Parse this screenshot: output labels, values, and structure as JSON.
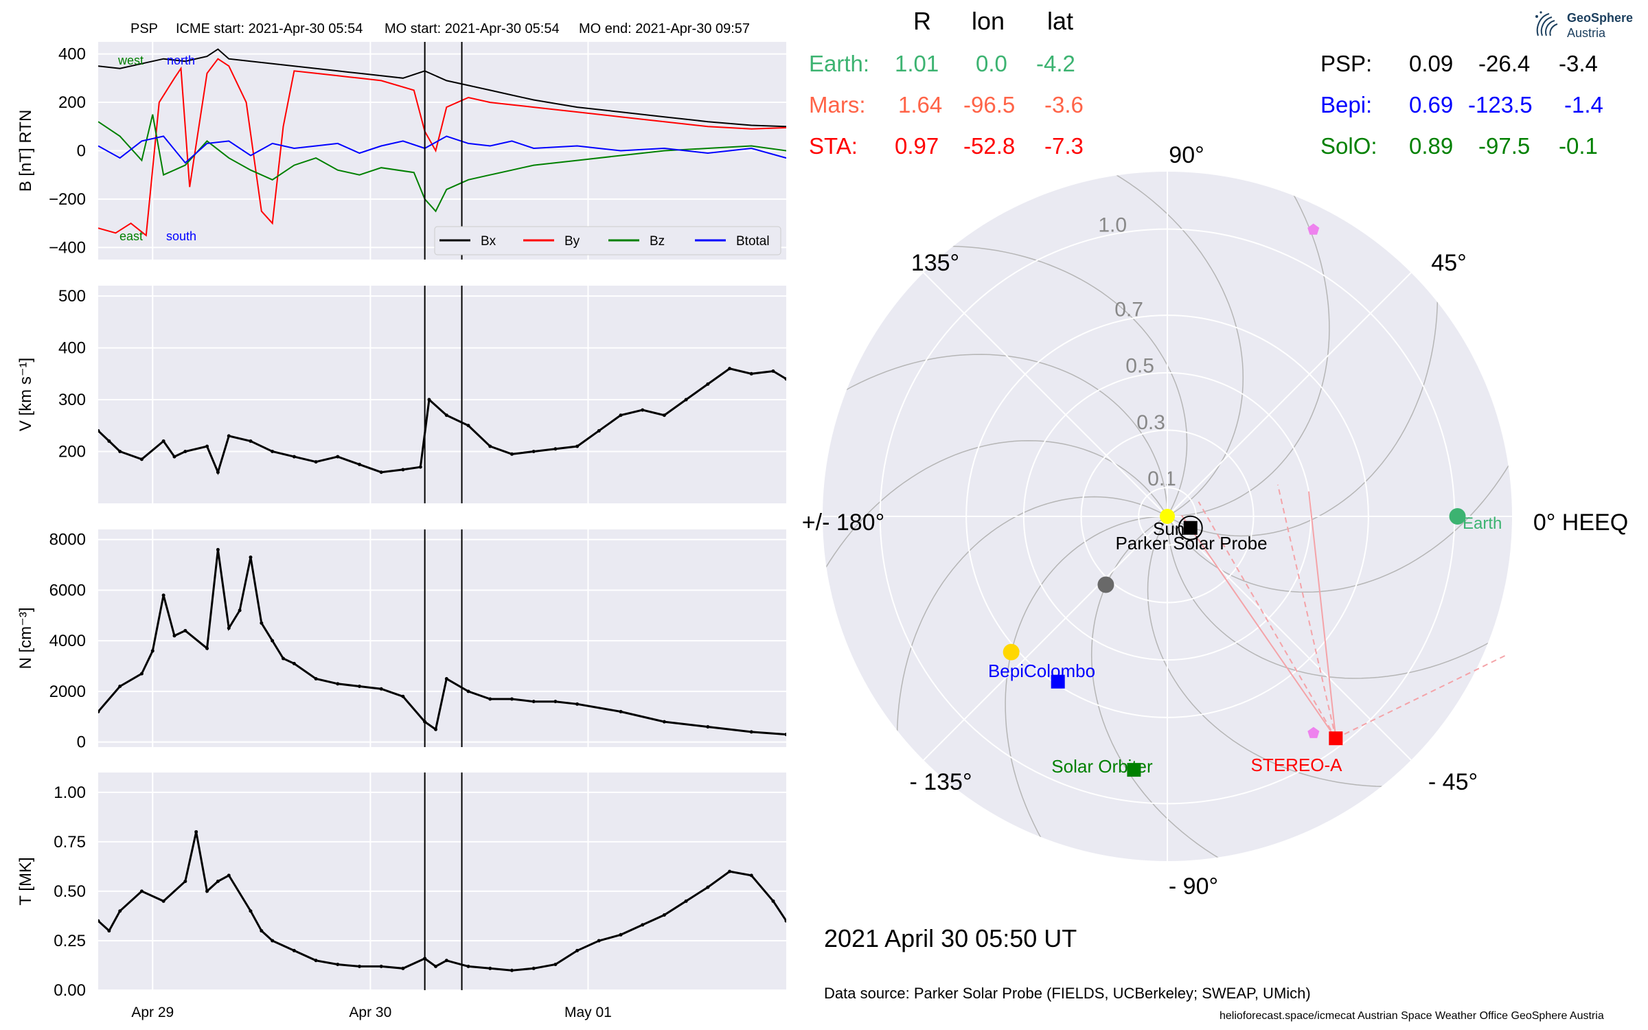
{
  "title_bar": {
    "spacecraft": "PSP",
    "icme_start": "ICME start: 2021-Apr-30 05:54",
    "mo_start": "MO start: 2021-Apr-30 05:54",
    "mo_end": "MO end: 2021-Apr-30 09:57"
  },
  "position_table": {
    "headers": [
      "R",
      "lon",
      "lat"
    ],
    "left_rows": [
      {
        "name": "Earth:",
        "R": "1.01",
        "lon": "0.0",
        "lat": "-4.2",
        "color": "#3cb371"
      },
      {
        "name": "Mars:",
        "R": "1.64",
        "lon": "-96.5",
        "lat": "-3.6",
        "color": "#ff6347"
      },
      {
        "name": "STA:",
        "R": "0.97",
        "lon": "-52.8",
        "lat": "-7.3",
        "color": "#ff0000"
      }
    ],
    "right_rows": [
      {
        "name": "PSP:",
        "R": "0.09",
        "lon": "-26.4",
        "lat": "-3.4",
        "color": "#000000"
      },
      {
        "name": "Bepi:",
        "R": "0.69",
        "lon": "-123.5",
        "lat": "-1.4",
        "color": "#0000ff"
      },
      {
        "name": "SolO:",
        "R": "0.89",
        "lon": "-97.5",
        "lat": "-0.1",
        "color": "#008000"
      }
    ]
  },
  "logo": {
    "line1": "GeoSphere",
    "line2": "Austria",
    "icon": "geosphere-swirl-icon"
  },
  "footer": {
    "datetime": "2021 April 30  05:50 UT",
    "data_source": "Data source: Parker Solar Probe (FIELDS, UCBerkeley; SWEAP, UMich)",
    "credit": "helioforecast.space/icmecat   Austrian Space Weather Office   GeoSphere Austria"
  },
  "colors": {
    "panel_bg": "#eaeaf2",
    "grid": "#ffffff",
    "bx": "#ff0000",
    "by": "#008000",
    "bz": "#0000ff",
    "btotal": "#000000"
  },
  "chart_data": [
    {
      "type": "line",
      "panel": "magnetic-field",
      "ylabel": "B [nT] RTN",
      "ylim": [
        -450,
        450
      ],
      "yticks": [
        -400,
        -200,
        0,
        200,
        400
      ],
      "xlim_days": [
        0,
        3.16
      ],
      "x_ticks": [
        {
          "x": 0.25,
          "label": "Apr 29"
        },
        {
          "x": 1.25,
          "label": "Apr 30"
        },
        {
          "x": 2.25,
          "label": "May 01"
        }
      ],
      "event_lines": [
        1.5,
        1.67
      ],
      "legend": [
        "Bx",
        "By",
        "Bz",
        "Btotal"
      ],
      "annotations": [
        {
          "text": "west",
          "color": "#008000",
          "pos": "top-left"
        },
        {
          "text": "north",
          "color": "#0000ff",
          "pos": "top-left"
        },
        {
          "text": "east",
          "color": "#008000",
          "pos": "bottom-left"
        },
        {
          "text": "south",
          "color": "#0000ff",
          "pos": "bottom-left"
        }
      ],
      "series": [
        {
          "name": "Btotal",
          "color": "#000000",
          "x": [
            0,
            0.1,
            0.2,
            0.3,
            0.4,
            0.5,
            0.55,
            0.6,
            0.7,
            0.8,
            0.9,
            1.0,
            1.1,
            1.2,
            1.3,
            1.4,
            1.5,
            1.6,
            1.7,
            1.8,
            1.9,
            2.0,
            2.2,
            2.4,
            2.6,
            2.8,
            3.0,
            3.16
          ],
          "y": [
            350,
            340,
            360,
            380,
            370,
            390,
            420,
            380,
            370,
            360,
            350,
            340,
            330,
            320,
            310,
            300,
            330,
            290,
            270,
            250,
            230,
            210,
            180,
            160,
            140,
            120,
            105,
            100
          ]
        },
        {
          "name": "Bx",
          "color": "#ff0000",
          "x": [
            0,
            0.08,
            0.15,
            0.22,
            0.28,
            0.35,
            0.38,
            0.42,
            0.5,
            0.55,
            0.6,
            0.68,
            0.75,
            0.8,
            0.85,
            0.9,
            1.0,
            1.1,
            1.2,
            1.3,
            1.45,
            1.5,
            1.55,
            1.6,
            1.7,
            1.8,
            1.9,
            2.0,
            2.2,
            2.4,
            2.6,
            2.8,
            3.0,
            3.16
          ],
          "y": [
            -320,
            -340,
            -300,
            -350,
            200,
            300,
            340,
            -150,
            320,
            380,
            350,
            200,
            -250,
            -300,
            100,
            330,
            320,
            310,
            300,
            290,
            250,
            80,
            0,
            180,
            220,
            200,
            190,
            180,
            160,
            140,
            120,
            100,
            90,
            95
          ]
        },
        {
          "name": "By",
          "color": "#008000",
          "x": [
            0,
            0.1,
            0.2,
            0.25,
            0.3,
            0.4,
            0.5,
            0.6,
            0.7,
            0.8,
            0.9,
            1.0,
            1.1,
            1.2,
            1.3,
            1.45,
            1.5,
            1.55,
            1.6,
            1.7,
            1.8,
            1.9,
            2.0,
            2.2,
            2.4,
            2.6,
            2.8,
            3.0,
            3.16
          ],
          "y": [
            120,
            60,
            -40,
            150,
            -100,
            -60,
            40,
            -30,
            -80,
            -120,
            -60,
            -30,
            -80,
            -100,
            -70,
            -90,
            -200,
            -250,
            -160,
            -120,
            -100,
            -80,
            -60,
            -40,
            -20,
            0,
            10,
            20,
            0
          ]
        },
        {
          "name": "Bz",
          "color": "#0000ff",
          "x": [
            0,
            0.1,
            0.2,
            0.3,
            0.4,
            0.5,
            0.6,
            0.7,
            0.8,
            0.9,
            1.0,
            1.1,
            1.2,
            1.3,
            1.4,
            1.5,
            1.6,
            1.7,
            1.8,
            1.9,
            2.0,
            2.2,
            2.4,
            2.6,
            2.8,
            3.0,
            3.16
          ],
          "y": [
            20,
            -30,
            40,
            60,
            -50,
            30,
            40,
            -20,
            30,
            10,
            20,
            30,
            -10,
            20,
            40,
            10,
            60,
            30,
            20,
            40,
            10,
            20,
            0,
            10,
            -10,
            10,
            -30
          ]
        }
      ]
    },
    {
      "type": "line",
      "panel": "velocity",
      "ylabel": "V [km s⁻¹]",
      "ylim": [
        100,
        520
      ],
      "yticks": [
        200,
        300,
        400,
        500
      ],
      "xlim_days": [
        0,
        3.16
      ],
      "event_lines": [
        1.5,
        1.67
      ],
      "series": [
        {
          "name": "V",
          "color": "#000000",
          "x": [
            0,
            0.05,
            0.1,
            0.2,
            0.3,
            0.35,
            0.4,
            0.5,
            0.55,
            0.6,
            0.7,
            0.8,
            0.9,
            1.0,
            1.1,
            1.2,
            1.3,
            1.4,
            1.48,
            1.52,
            1.6,
            1.7,
            1.8,
            1.9,
            2.0,
            2.1,
            2.2,
            2.3,
            2.4,
            2.5,
            2.6,
            2.7,
            2.8,
            2.9,
            3.0,
            3.1,
            3.16
          ],
          "y": [
            240,
            220,
            200,
            185,
            220,
            190,
            200,
            210,
            160,
            230,
            220,
            200,
            190,
            180,
            190,
            175,
            160,
            165,
            170,
            300,
            270,
            250,
            210,
            195,
            200,
            205,
            210,
            240,
            270,
            280,
            270,
            300,
            330,
            360,
            350,
            355,
            340
          ]
        }
      ]
    },
    {
      "type": "line",
      "panel": "density",
      "ylabel": "N [cm⁻³]",
      "ylim": [
        -200,
        8400
      ],
      "yticks": [
        0,
        2000,
        4000,
        6000,
        8000
      ],
      "xlim_days": [
        0,
        3.16
      ],
      "event_lines": [
        1.5,
        1.67
      ],
      "series": [
        {
          "name": "N",
          "color": "#000000",
          "x": [
            0,
            0.1,
            0.2,
            0.25,
            0.3,
            0.35,
            0.4,
            0.5,
            0.55,
            0.6,
            0.65,
            0.7,
            0.75,
            0.8,
            0.85,
            0.9,
            1.0,
            1.1,
            1.2,
            1.3,
            1.4,
            1.5,
            1.55,
            1.6,
            1.7,
            1.8,
            1.9,
            2.0,
            2.1,
            2.2,
            2.4,
            2.6,
            2.8,
            3.0,
            3.16
          ],
          "y": [
            1200,
            2200,
            2700,
            3600,
            5800,
            4200,
            4400,
            3700,
            7600,
            4500,
            5200,
            7300,
            4700,
            4000,
            3300,
            3100,
            2500,
            2300,
            2200,
            2100,
            1800,
            800,
            500,
            2500,
            2000,
            1700,
            1700,
            1600,
            1600,
            1500,
            1200,
            800,
            600,
            400,
            300
          ]
        }
      ]
    },
    {
      "type": "line",
      "panel": "temperature",
      "ylabel": "T [MK]",
      "ylim": [
        0,
        1.1
      ],
      "yticks": [
        0.0,
        0.25,
        0.5,
        0.75,
        1.0
      ],
      "xlim_days": [
        0,
        3.16
      ],
      "event_lines": [
        1.5,
        1.67
      ],
      "series": [
        {
          "name": "T",
          "color": "#000000",
          "x": [
            0,
            0.05,
            0.1,
            0.2,
            0.3,
            0.4,
            0.45,
            0.5,
            0.55,
            0.6,
            0.7,
            0.75,
            0.8,
            0.9,
            1.0,
            1.1,
            1.2,
            1.3,
            1.4,
            1.5,
            1.55,
            1.6,
            1.7,
            1.8,
            1.9,
            2.0,
            2.1,
            2.2,
            2.3,
            2.4,
            2.5,
            2.6,
            2.7,
            2.8,
            2.9,
            3.0,
            3.1,
            3.16
          ],
          "y": [
            0.35,
            0.3,
            0.4,
            0.5,
            0.45,
            0.55,
            0.8,
            0.5,
            0.55,
            0.58,
            0.4,
            0.3,
            0.25,
            0.2,
            0.15,
            0.13,
            0.12,
            0.12,
            0.11,
            0.16,
            0.12,
            0.15,
            0.12,
            0.11,
            0.1,
            0.11,
            0.13,
            0.2,
            0.25,
            0.28,
            0.33,
            0.38,
            0.45,
            0.52,
            0.6,
            0.58,
            0.45,
            0.35
          ]
        }
      ]
    },
    {
      "type": "scatter",
      "panel": "polar-positions",
      "coordinate_system": "0° HEEQ",
      "radial_ticks": [
        0.1,
        0.3,
        0.5,
        0.7,
        1.0
      ],
      "angle_labels": [
        {
          "deg": 0,
          "text": "0° HEEQ"
        },
        {
          "deg": 45,
          "text": "45°"
        },
        {
          "deg": 90,
          "text": "90°"
        },
        {
          "deg": 135,
          "text": "135°"
        },
        {
          "deg": 180,
          "text": "+/- 180°"
        },
        {
          "deg": -135,
          "text": "- 135°"
        },
        {
          "deg": -90,
          "text": "- 90°"
        },
        {
          "deg": -45,
          "text": "- 45°"
        }
      ],
      "bodies": [
        {
          "name": "Sun",
          "lon": 0,
          "R": 0.0,
          "color": "#ffff00",
          "marker": "circle",
          "label": "Sun"
        },
        {
          "name": "Earth",
          "lon": 0.0,
          "R": 1.01,
          "color": "#3cb371",
          "marker": "circle",
          "label": "Earth"
        },
        {
          "name": "Parker Solar Probe",
          "lon": -26.4,
          "R": 0.09,
          "color": "#000000",
          "marker": "square",
          "label": "Parker Solar Probe"
        },
        {
          "name": "STEREO-A",
          "lon": -52.8,
          "R": 0.97,
          "color": "#ff0000",
          "marker": "square",
          "label": "STEREO-A"
        },
        {
          "name": "BepiColombo",
          "lon": -123.5,
          "R": 0.69,
          "color": "#0000ff",
          "marker": "square",
          "label": "BepiColombo"
        },
        {
          "name": "Solar Orbiter",
          "lon": -97.5,
          "R": 0.89,
          "color": "#008000",
          "marker": "square",
          "label": "Solar Orbiter"
        },
        {
          "name": "Venus",
          "lon": -139,
          "R": 0.72,
          "color": "#ffd700",
          "marker": "circle",
          "label": ""
        },
        {
          "name": "Mercury",
          "lon": -132,
          "R": 0.32,
          "color": "#696969",
          "marker": "circle",
          "label": ""
        },
        {
          "name": "Mars",
          "lon": -96.5,
          "R": 1.64,
          "color": "#ff6347",
          "marker": "circle",
          "label": ""
        },
        {
          "name": "Pentagon-1",
          "lon": 63,
          "R": 1.12,
          "color": "#ee82ee",
          "marker": "pentagon",
          "label": ""
        },
        {
          "name": "Pentagon-2",
          "lon": -56,
          "R": 0.91,
          "color": "#ee82ee",
          "marker": "pentagon",
          "label": ""
        }
      ]
    }
  ]
}
